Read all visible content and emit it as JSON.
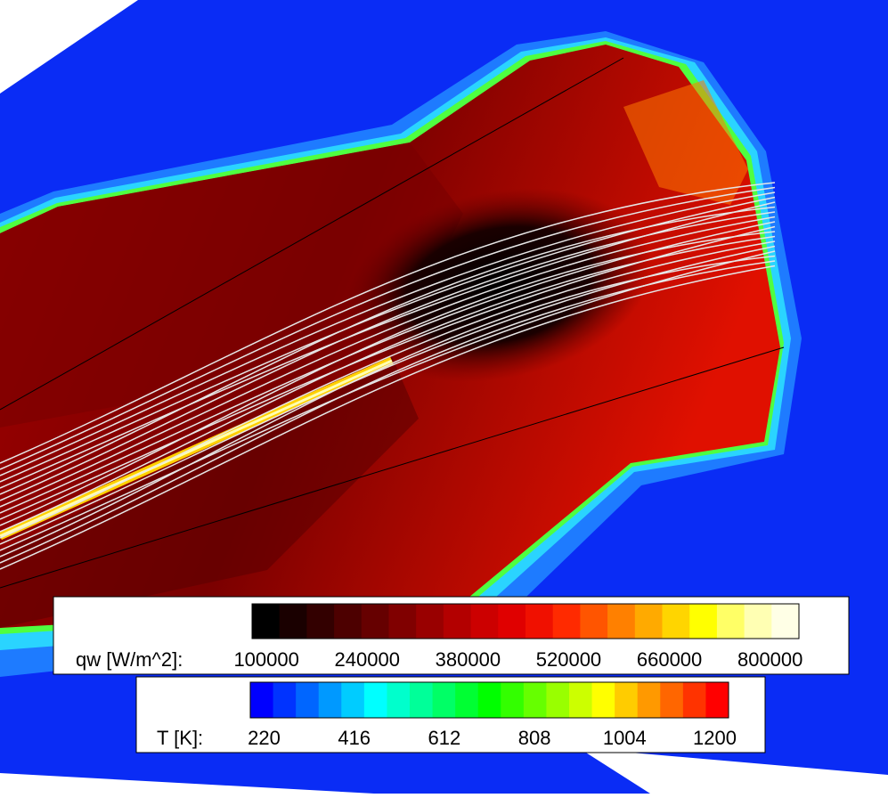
{
  "colorbars": [
    {
      "label": "qw [W/m^2]:",
      "range": [
        80000,
        840000
      ],
      "ticks": [
        100000,
        240000,
        380000,
        520000,
        660000,
        800000
      ],
      "colors": [
        "#000000",
        "#1a0000",
        "#330000",
        "#4d0000",
        "#660000",
        "#800000",
        "#990000",
        "#b30000",
        "#cc0000",
        "#e00000",
        "#f01000",
        "#ff2a00",
        "#ff5500",
        "#ff8000",
        "#ffaa00",
        "#ffd500",
        "#ffff00",
        "#ffff66",
        "#ffffb3",
        "#ffffe6"
      ]
    },
    {
      "label": "T [K]:",
      "range": [
        190,
        1230
      ],
      "ticks": [
        220,
        416,
        612,
        808,
        1004,
        1200
      ],
      "colors": [
        "#0000ff",
        "#0033ff",
        "#0066ff",
        "#0099ff",
        "#00ccff",
        "#00ffff",
        "#00ffcc",
        "#00ff99",
        "#00ff66",
        "#00ff33",
        "#00ff00",
        "#33ff00",
        "#66ff00",
        "#99ff00",
        "#ccff00",
        "#ffff00",
        "#ffcc00",
        "#ff9900",
        "#ff6600",
        "#ff3300",
        "#ff0000"
      ]
    }
  ]
}
